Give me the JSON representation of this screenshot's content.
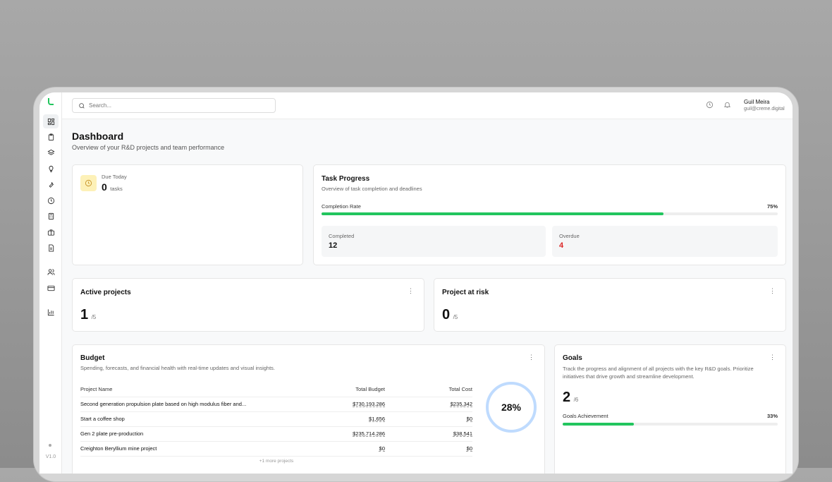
{
  "search": {
    "placeholder": "Search..."
  },
  "user": {
    "name": "Guil Meira",
    "email": "guil@creme.digital"
  },
  "sidebar": {
    "version": "V1.0",
    "icons": [
      "dashboard-icon",
      "clipboard-icon",
      "layers-icon",
      "lightbulb-icon",
      "wrench-icon",
      "clock-icon",
      "calculator-icon",
      "briefcase-icon",
      "file-text-icon",
      "users-icon",
      "credit-card-icon",
      "bar-chart-icon"
    ]
  },
  "page": {
    "title": "Dashboard",
    "subtitle": "Overview of your R&D projects and team performance"
  },
  "due": {
    "label": "Due Today",
    "count": "0",
    "unit": "tasks"
  },
  "task_progress": {
    "title": "Task Progress",
    "subtitle": "Overview of task completion and deadlines",
    "rate_label": "Completion Rate",
    "rate": "75%",
    "rate_value": 75,
    "completed_label": "Completed",
    "completed": "12",
    "overdue_label": "Overdue",
    "overdue": "4"
  },
  "active": {
    "title": "Active projects",
    "value": "1",
    "total": "/5"
  },
  "risk": {
    "title": "Project at risk",
    "value": "0",
    "total": "/5"
  },
  "budget": {
    "title": "Budget",
    "subtitle": "Spending, forecasts, and financial health with real-time updates and visual insights.",
    "headers": [
      "Project Name",
      "Total Budget",
      "Total Cost"
    ],
    "rows": [
      [
        "Second generation propulsion plate based on high modulus fiber and...",
        "$730,193.286",
        "$235,342"
      ],
      [
        "Start a coffee shop",
        "$1,656",
        "$0"
      ],
      [
        "Gen 2 plate pre-production",
        "$235,714.286",
        "$38,541"
      ],
      [
        "Creighton Beryllium mine project",
        "$0",
        "$0"
      ]
    ],
    "more": "+1 more projects",
    "percent": "28%"
  },
  "goals": {
    "title": "Goals",
    "subtitle": "Track the progress and alignment of all projects with the key R&D goals. Prioritize initiatives that drive growth and streamline development.",
    "value": "2",
    "total": "/6",
    "achievement_label": "Goals Achievement",
    "achievement": "33%",
    "achievement_value": 33
  },
  "colors": {
    "accent": "#22c55e",
    "overdue": "#dc2626",
    "ring": "#bfdbfe"
  }
}
